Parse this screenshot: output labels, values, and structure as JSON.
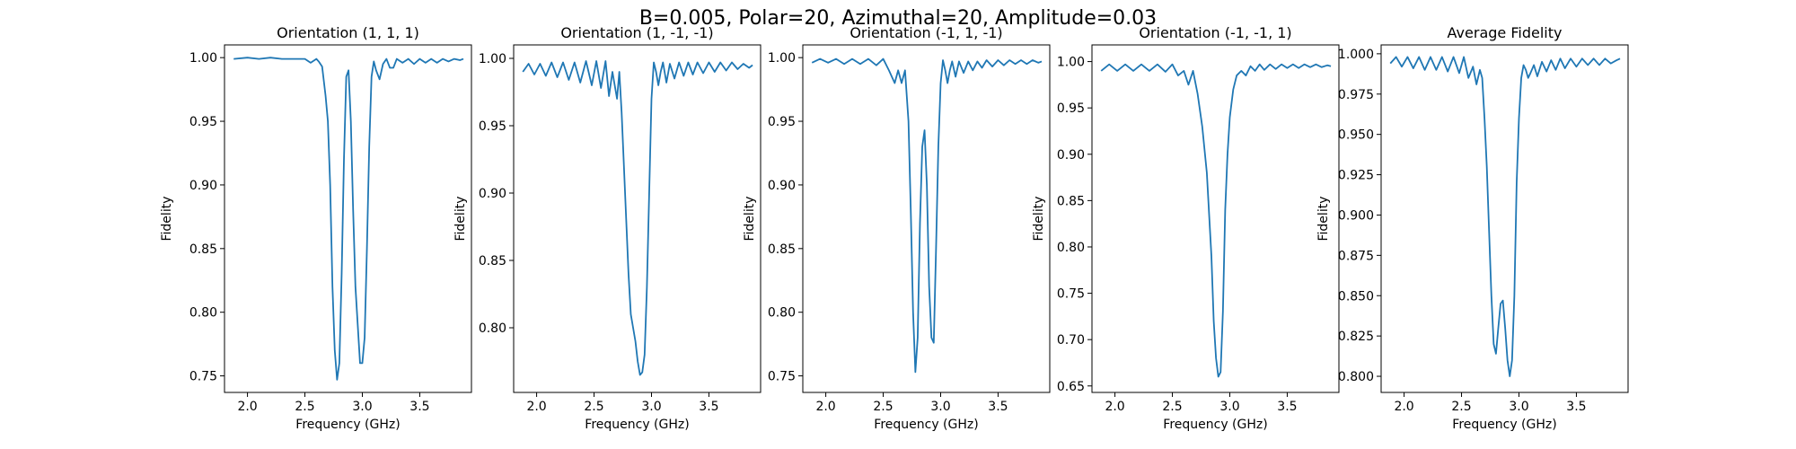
{
  "figure": {
    "suptitle": "B=0.005, Polar=20, Azimuthal=20, Amplitude=0.03",
    "line_color": "#1f77b4"
  },
  "chart_data": [
    {
      "type": "line",
      "title": "Orientation (1, 1, 1)",
      "xlabel": "Frequency (GHz)",
      "ylabel": "Fidelity",
      "xlim": [
        1.8,
        3.95
      ],
      "ylim": [
        0.737,
        1.01
      ],
      "xticks": [
        2.0,
        2.5,
        3.0,
        3.5
      ],
      "xtick_labels": [
        "2.0",
        "2.5",
        "3.0",
        "3.5"
      ],
      "yticks": [
        0.75,
        0.8,
        0.85,
        0.9,
        0.95,
        1.0
      ],
      "ytick_labels": [
        "0.75",
        "0.80",
        "0.85",
        "0.90",
        "0.95",
        "1.00"
      ],
      "series": [
        {
          "x": [
            1.88,
            2.0,
            2.1,
            2.2,
            2.3,
            2.4,
            2.5,
            2.55,
            2.6,
            2.62,
            2.65,
            2.68,
            2.7,
            2.72,
            2.74,
            2.76,
            2.78,
            2.8,
            2.82,
            2.84,
            2.86,
            2.88,
            2.9,
            2.92,
            2.94,
            2.96,
            2.98,
            3.0,
            3.02,
            3.04,
            3.06,
            3.08,
            3.1,
            3.12,
            3.15,
            3.18,
            3.21,
            3.24,
            3.27,
            3.3,
            3.35,
            3.4,
            3.45,
            3.5,
            3.55,
            3.6,
            3.65,
            3.7,
            3.75,
            3.8,
            3.85,
            3.88
          ],
          "y": [
            0.999,
            1.0,
            0.999,
            1.0,
            0.999,
            0.999,
            0.999,
            0.996,
            0.999,
            0.997,
            0.993,
            0.97,
            0.95,
            0.9,
            0.82,
            0.77,
            0.747,
            0.76,
            0.83,
            0.92,
            0.985,
            0.99,
            0.95,
            0.88,
            0.82,
            0.79,
            0.76,
            0.76,
            0.78,
            0.85,
            0.93,
            0.985,
            0.997,
            0.99,
            0.983,
            0.995,
            0.999,
            0.992,
            0.992,
            0.999,
            0.996,
            0.999,
            0.995,
            0.999,
            0.996,
            0.999,
            0.996,
            0.999,
            0.997,
            0.999,
            0.998,
            0.999
          ]
        }
      ]
    },
    {
      "type": "line",
      "title": "Orientation (1, -1, -1)",
      "xlabel": "Frequency (GHz)",
      "ylabel": "Fidelity",
      "xlim": [
        1.8,
        3.95
      ],
      "ylim": [
        0.752,
        1.01
      ],
      "xticks": [
        2.0,
        2.5,
        3.0,
        3.5
      ],
      "xtick_labels": [
        "2.0",
        "2.5",
        "3.0",
        "3.5"
      ],
      "yticks": [
        0.8,
        0.85,
        0.9,
        0.95,
        1.0
      ],
      "ytick_labels": [
        "0.80",
        "0.85",
        "0.90",
        "0.95",
        "1.00"
      ],
      "series": [
        {
          "x": [
            1.88,
            1.93,
            1.98,
            2.03,
            2.08,
            2.13,
            2.18,
            2.23,
            2.28,
            2.33,
            2.38,
            2.43,
            2.48,
            2.52,
            2.56,
            2.6,
            2.63,
            2.66,
            2.7,
            2.72,
            2.74,
            2.76,
            2.78,
            2.8,
            2.82,
            2.84,
            2.86,
            2.88,
            2.9,
            2.92,
            2.94,
            2.96,
            2.98,
            3.0,
            3.02,
            3.04,
            3.06,
            3.08,
            3.1,
            3.13,
            3.16,
            3.2,
            3.24,
            3.28,
            3.32,
            3.36,
            3.4,
            3.45,
            3.5,
            3.55,
            3.6,
            3.65,
            3.7,
            3.75,
            3.8,
            3.85,
            3.88
          ],
          "y": [
            0.99,
            0.996,
            0.988,
            0.996,
            0.987,
            0.997,
            0.986,
            0.997,
            0.984,
            0.997,
            0.982,
            0.998,
            0.98,
            0.998,
            0.978,
            0.998,
            0.972,
            0.99,
            0.97,
            0.99,
            0.96,
            0.92,
            0.88,
            0.84,
            0.81,
            0.8,
            0.79,
            0.775,
            0.765,
            0.767,
            0.78,
            0.83,
            0.9,
            0.97,
            0.997,
            0.99,
            0.98,
            0.99,
            0.997,
            0.982,
            0.996,
            0.985,
            0.997,
            0.987,
            0.997,
            0.988,
            0.997,
            0.989,
            0.997,
            0.99,
            0.997,
            0.991,
            0.997,
            0.992,
            0.996,
            0.993,
            0.995
          ]
        }
      ]
    },
    {
      "type": "line",
      "title": "Orientation (-1, 1, -1)",
      "xlabel": "Frequency (GHz)",
      "ylabel": "Fidelity",
      "xlim": [
        1.8,
        3.95
      ],
      "ylim": [
        0.737,
        1.01
      ],
      "xticks": [
        2.0,
        2.5,
        3.0,
        3.5
      ],
      "xtick_labels": [
        "2.0",
        "2.5",
        "3.0",
        "3.5"
      ],
      "yticks": [
        0.75,
        0.8,
        0.85,
        0.9,
        0.95,
        1.0
      ],
      "ytick_labels": [
        "0.75",
        "0.80",
        "0.85",
        "0.90",
        "0.95",
        "1.00"
      ],
      "series": [
        {
          "x": [
            1.88,
            1.95,
            2.02,
            2.09,
            2.16,
            2.23,
            2.3,
            2.37,
            2.44,
            2.5,
            2.55,
            2.6,
            2.63,
            2.66,
            2.69,
            2.72,
            2.74,
            2.76,
            2.78,
            2.8,
            2.82,
            2.84,
            2.86,
            2.88,
            2.9,
            2.92,
            2.94,
            2.96,
            2.98,
            3.0,
            3.02,
            3.04,
            3.06,
            3.08,
            3.1,
            3.13,
            3.16,
            3.2,
            3.24,
            3.28,
            3.32,
            3.36,
            3.4,
            3.45,
            3.5,
            3.55,
            3.6,
            3.65,
            3.7,
            3.75,
            3.8,
            3.85,
            3.88
          ],
          "y": [
            0.996,
            0.999,
            0.996,
            0.999,
            0.995,
            0.999,
            0.995,
            0.999,
            0.994,
            0.999,
            0.99,
            0.98,
            0.99,
            0.98,
            0.99,
            0.95,
            0.88,
            0.8,
            0.753,
            0.78,
            0.87,
            0.93,
            0.943,
            0.9,
            0.82,
            0.78,
            0.776,
            0.85,
            0.93,
            0.98,
            0.998,
            0.99,
            0.98,
            0.99,
            0.997,
            0.985,
            0.997,
            0.988,
            0.997,
            0.99,
            0.997,
            0.992,
            0.998,
            0.993,
            0.998,
            0.994,
            0.998,
            0.995,
            0.998,
            0.995,
            0.998,
            0.996,
            0.997
          ]
        }
      ]
    },
    {
      "type": "line",
      "title": "Orientation (-1, -1, 1)",
      "xlabel": "Frequency (GHz)",
      "ylabel": "Fidelity",
      "xlim": [
        1.8,
        3.95
      ],
      "ylim": [
        0.643,
        1.018
      ],
      "xticks": [
        2.0,
        2.5,
        3.0,
        3.5
      ],
      "xtick_labels": [
        "2.0",
        "2.5",
        "3.0",
        "3.5"
      ],
      "yticks": [
        0.65,
        0.7,
        0.75,
        0.8,
        0.85,
        0.9,
        0.95,
        1.0
      ],
      "ytick_labels": [
        "0.65",
        "0.70",
        "0.75",
        "0.80",
        "0.85",
        "0.90",
        "0.95",
        "1.00"
      ],
      "series": [
        {
          "x": [
            1.88,
            1.95,
            2.02,
            2.09,
            2.16,
            2.23,
            2.3,
            2.37,
            2.44,
            2.5,
            2.55,
            2.6,
            2.64,
            2.68,
            2.72,
            2.76,
            2.8,
            2.84,
            2.86,
            2.88,
            2.9,
            2.92,
            2.94,
            2.96,
            2.98,
            3.0,
            3.03,
            3.06,
            3.1,
            3.14,
            3.18,
            3.22,
            3.26,
            3.3,
            3.35,
            3.4,
            3.45,
            3.5,
            3.55,
            3.6,
            3.65,
            3.7,
            3.75,
            3.8,
            3.85,
            3.88
          ],
          "y": [
            0.99,
            0.997,
            0.99,
            0.997,
            0.99,
            0.997,
            0.99,
            0.997,
            0.989,
            0.997,
            0.985,
            0.99,
            0.975,
            0.99,
            0.965,
            0.93,
            0.88,
            0.79,
            0.72,
            0.68,
            0.66,
            0.665,
            0.73,
            0.84,
            0.9,
            0.94,
            0.97,
            0.985,
            0.99,
            0.985,
            0.995,
            0.99,
            0.997,
            0.991,
            0.997,
            0.992,
            0.997,
            0.993,
            0.997,
            0.993,
            0.997,
            0.994,
            0.997,
            0.994,
            0.996,
            0.995
          ]
        }
      ]
    },
    {
      "type": "line",
      "title": "Average Fidelity",
      "xlabel": "Frequency (GHz)",
      "ylabel": "Fidelity",
      "xlim": [
        1.8,
        3.95
      ],
      "ylim": [
        0.79,
        1.0055
      ],
      "xticks": [
        2.0,
        2.5,
        3.0,
        3.5
      ],
      "xtick_labels": [
        "2.0",
        "2.5",
        "3.0",
        "3.5"
      ],
      "yticks": [
        0.8,
        0.825,
        0.85,
        0.875,
        0.9,
        0.925,
        0.95,
        0.975,
        1.0
      ],
      "ytick_labels": [
        "0.800",
        "0.825",
        "0.850",
        "0.875",
        "0.900",
        "0.925",
        "0.950",
        "0.975",
        "1.000"
      ],
      "series": [
        {
          "x": [
            1.88,
            1.93,
            1.98,
            2.03,
            2.08,
            2.13,
            2.18,
            2.23,
            2.28,
            2.33,
            2.38,
            2.43,
            2.48,
            2.52,
            2.56,
            2.6,
            2.63,
            2.66,
            2.68,
            2.7,
            2.72,
            2.74,
            2.76,
            2.78,
            2.8,
            2.82,
            2.84,
            2.86,
            2.88,
            2.9,
            2.92,
            2.94,
            2.96,
            2.98,
            3.0,
            3.02,
            3.04,
            3.06,
            3.08,
            3.1,
            3.13,
            3.16,
            3.2,
            3.24,
            3.28,
            3.32,
            3.36,
            3.4,
            3.45,
            3.5,
            3.55,
            3.6,
            3.65,
            3.7,
            3.75,
            3.8,
            3.85,
            3.88
          ],
          "y": [
            0.994,
            0.998,
            0.992,
            0.998,
            0.991,
            0.998,
            0.99,
            0.998,
            0.99,
            0.998,
            0.989,
            0.998,
            0.988,
            0.998,
            0.985,
            0.992,
            0.981,
            0.99,
            0.985,
            0.96,
            0.93,
            0.89,
            0.85,
            0.82,
            0.814,
            0.83,
            0.845,
            0.847,
            0.83,
            0.81,
            0.8,
            0.81,
            0.85,
            0.92,
            0.96,
            0.985,
            0.993,
            0.99,
            0.985,
            0.988,
            0.993,
            0.986,
            0.995,
            0.989,
            0.996,
            0.99,
            0.997,
            0.991,
            0.997,
            0.992,
            0.997,
            0.993,
            0.997,
            0.993,
            0.997,
            0.994,
            0.996,
            0.997
          ]
        }
      ]
    }
  ]
}
